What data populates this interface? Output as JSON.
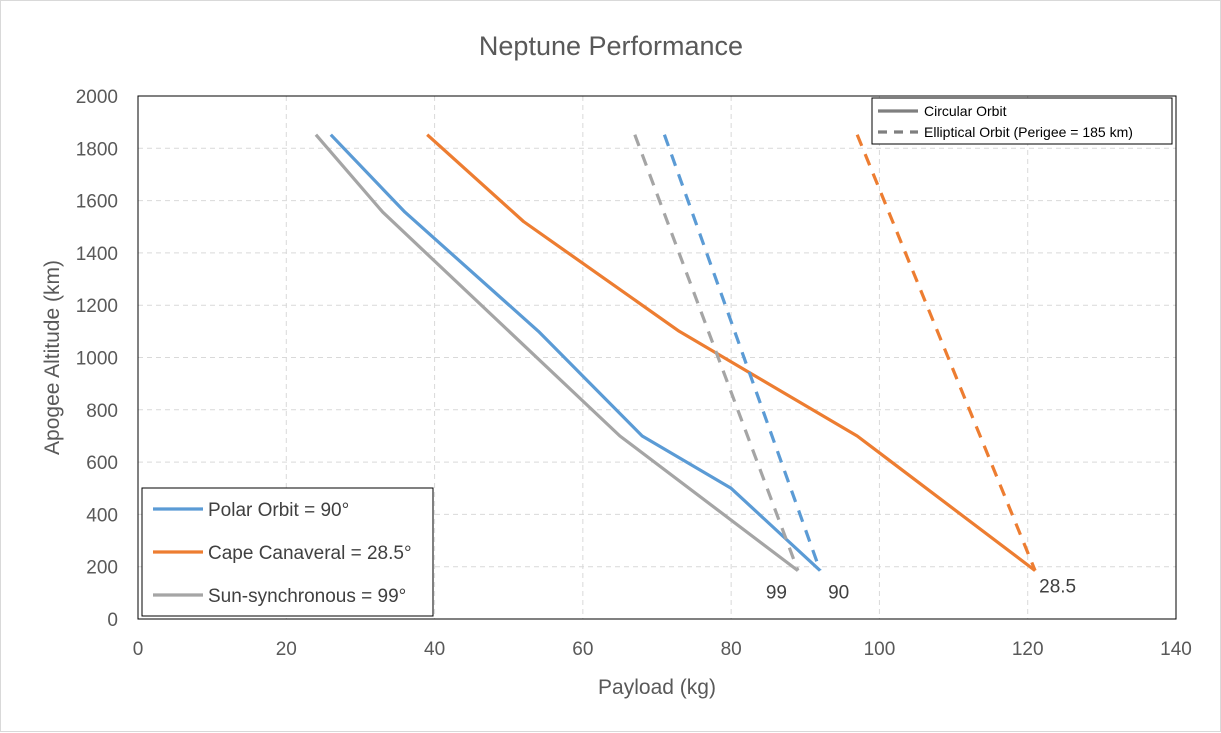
{
  "chart_data": {
    "type": "line",
    "title": "Neptune Performance",
    "xlabel": "Payload (kg)",
    "ylabel": "Apogee Altitude (km)",
    "xlim": [
      0,
      140
    ],
    "ylim": [
      0,
      2000
    ],
    "x_ticks": [
      0,
      20,
      40,
      60,
      80,
      100,
      120,
      140
    ],
    "y_ticks": [
      0,
      200,
      400,
      600,
      800,
      1000,
      1200,
      1400,
      1600,
      1800,
      2000
    ],
    "grid": true,
    "series": [
      {
        "name": "Polar Orbit = 90°",
        "orbit": "circular",
        "color": "#5b9bd5",
        "points": [
          [
            26,
            1852
          ],
          [
            36,
            1556
          ],
          [
            54,
            1100
          ],
          [
            68,
            700
          ],
          [
            80,
            500
          ],
          [
            92,
            185
          ]
        ]
      },
      {
        "name": "Cape Canaveral = 28.5°",
        "orbit": "circular",
        "color": "#ed7d31",
        "points": [
          [
            39,
            1852
          ],
          [
            52,
            1520
          ],
          [
            73,
            1100
          ],
          [
            97,
            700
          ],
          [
            121,
            185
          ]
        ]
      },
      {
        "name": "Sun-synchronous = 99°",
        "orbit": "circular",
        "color": "#a5a5a5",
        "points": [
          [
            24,
            1852
          ],
          [
            33,
            1556
          ],
          [
            65,
            700
          ],
          [
            89,
            185
          ]
        ]
      },
      {
        "name": "Polar Orbit = 90°",
        "orbit": "elliptical",
        "color": "#5b9bd5",
        "points": [
          [
            71,
            1852
          ],
          [
            92,
            185
          ]
        ]
      },
      {
        "name": "Cape Canaveral = 28.5°",
        "orbit": "elliptical",
        "color": "#ed7d31",
        "points": [
          [
            97,
            1852
          ],
          [
            121,
            185
          ]
        ]
      },
      {
        "name": "Sun-synchronous = 99°",
        "orbit": "elliptical",
        "color": "#a5a5a5",
        "points": [
          [
            67,
            1852
          ],
          [
            89,
            185
          ]
        ]
      }
    ],
    "annotations": [
      {
        "text": "99",
        "x": 89,
        "y": 185
      },
      {
        "text": "90",
        "x": 92,
        "y": 185
      },
      {
        "text": "28.5",
        "x": 121,
        "y": 185
      }
    ],
    "legend_orbit": {
      "placement": "top-right",
      "items": [
        {
          "label": "Circular Orbit",
          "style": "solid",
          "color": "#7f7f7f"
        },
        {
          "label": "Elliptical Orbit (Perigee = 185 km)",
          "style": "dashed",
          "color": "#7f7f7f"
        }
      ]
    },
    "legend_inclination": {
      "placement": "bottom-left",
      "items": [
        {
          "label": "Polar Orbit = 90°",
          "color": "#5b9bd5"
        },
        {
          "label": "Cape Canaveral = 28.5°",
          "color": "#ed7d31"
        },
        {
          "label": "Sun-synchronous = 99°",
          "color": "#a5a5a5"
        }
      ]
    }
  }
}
